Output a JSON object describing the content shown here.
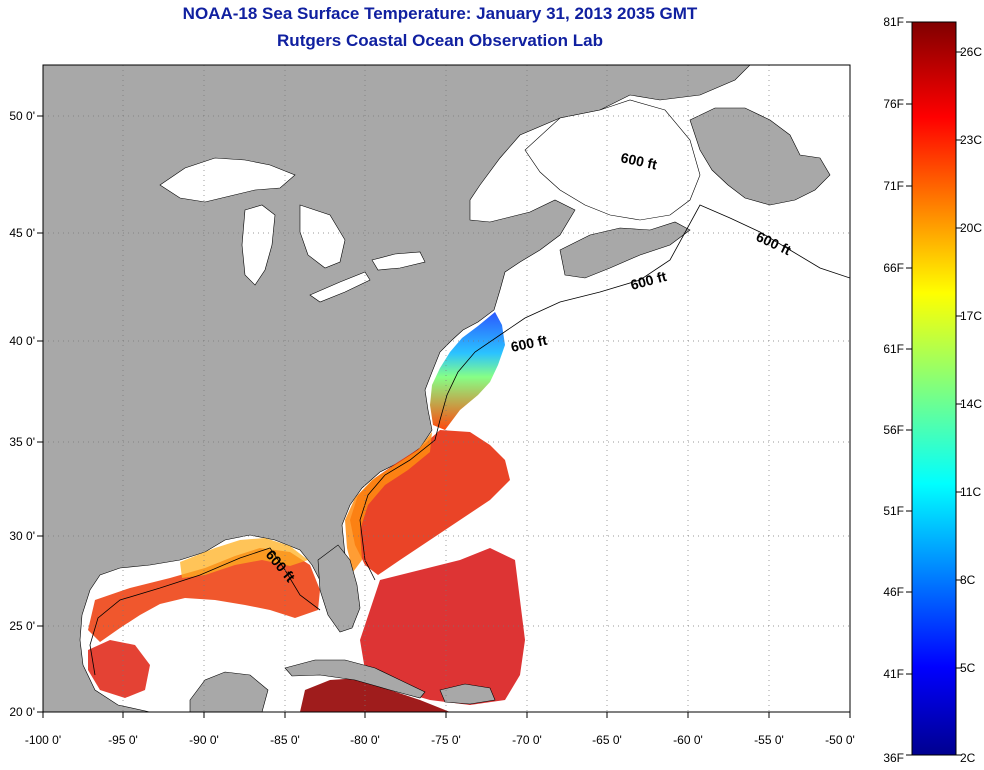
{
  "header": {
    "title": "NOAA-18 Sea Surface Temperature:  January 31, 2013 2035 GMT",
    "subtitle": "Rutgers Coastal Ocean Observation Lab"
  },
  "map": {
    "lon_ticks": [
      "-100 0'",
      "-95 0'",
      "-90 0'",
      "-85 0'",
      "-80 0'",
      "-75 0'",
      "-70 0'",
      "-65 0'",
      "-60 0'",
      "-55 0'",
      "-50 0'"
    ],
    "lat_ticks": [
      "50 0'",
      "45 0'",
      "40 0'",
      "35 0'",
      "30 0'",
      "25 0'",
      "20 0'"
    ],
    "contour_labels": [
      "600 ft",
      "600 ft",
      "600 ft",
      "600 ft",
      "600 ft"
    ],
    "colors": {
      "land": "#a8a8a8",
      "ocean_nodata": "#ffffff",
      "grid": "#808080"
    }
  },
  "colorbar": {
    "f_labels": [
      "81F",
      "76F",
      "71F",
      "66F",
      "61F",
      "56F",
      "51F",
      "46F",
      "41F",
      "36F"
    ],
    "c_labels": [
      "26C",
      "23C",
      "20C",
      "17C",
      "14C",
      "11C",
      "8C",
      "5C",
      "2C"
    ]
  }
}
